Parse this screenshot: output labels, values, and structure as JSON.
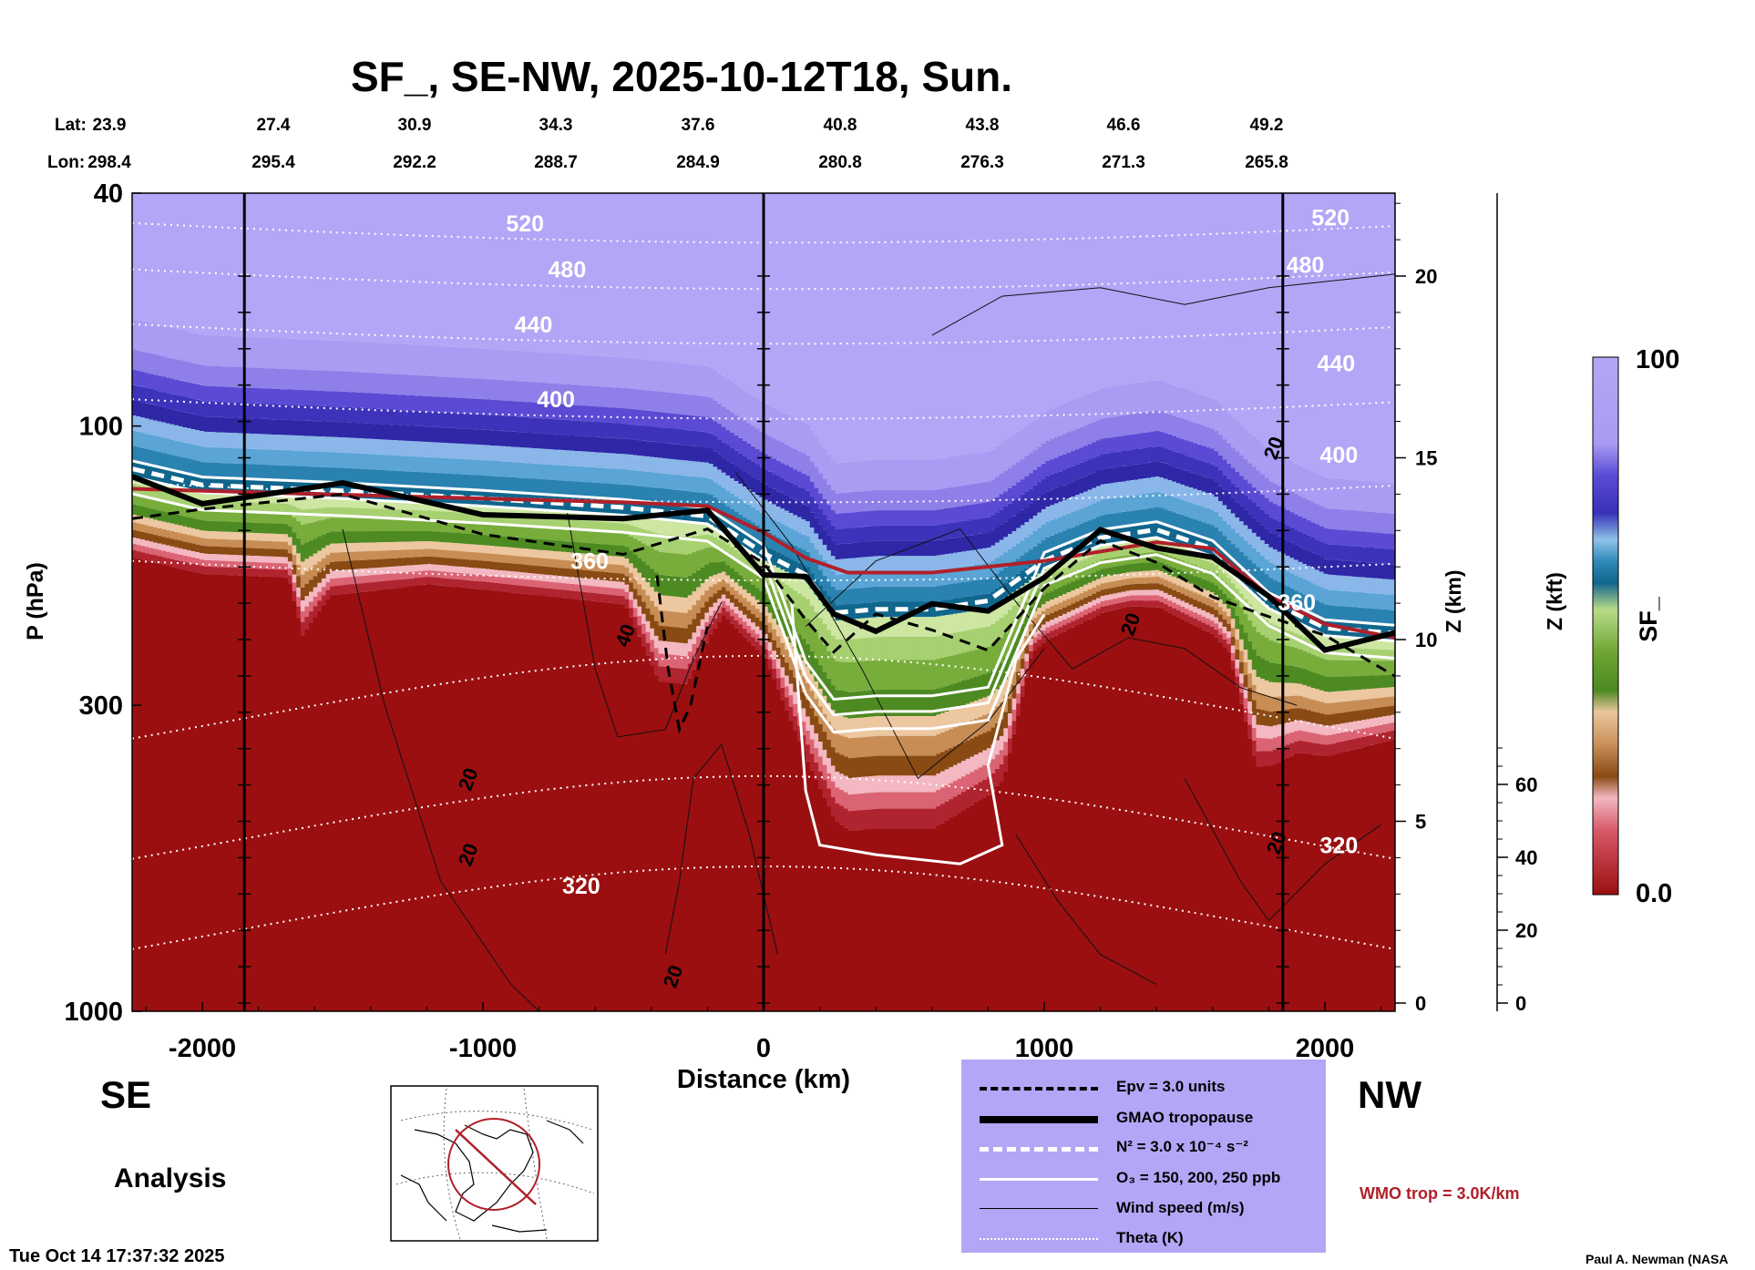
{
  "title": "SF_, SE-NW, 2025-10-12T18, Sun.",
  "lat_label": "Lat:",
  "lon_label": "Lon:",
  "lats": [
    "23.9",
    "27.4",
    "30.9",
    "34.3",
    "37.6",
    "40.8",
    "43.8",
    "46.6",
    "49.2"
  ],
  "lons": [
    "298.4",
    "295.4",
    "292.2",
    "288.7",
    "284.9",
    "280.8",
    "276.3",
    "271.3",
    "265.8"
  ],
  "direction_left": "SE",
  "direction_right": "NW",
  "analysis_label": "Analysis",
  "timestamp": "Tue Oct 14 17:37:32 2025",
  "credit": "Paul A. Newman (NASA",
  "wmo_text": "WMO trop = 3.0K/km",
  "legend": [
    {
      "style": "dashed-black",
      "label": "Epv = 3.0 units"
    },
    {
      "style": "thick-black",
      "label": "GMAO tropopause"
    },
    {
      "style": "dashed-white",
      "label": "N² = 3.0 x 10⁻⁴ s⁻²"
    },
    {
      "style": "solid-white",
      "label": "O₃ = 150, 200, 250 ppb"
    },
    {
      "style": "thin-black",
      "label": "Wind speed (m/s)"
    },
    {
      "style": "dotted-white",
      "label": "Theta (K)"
    }
  ],
  "colors": {
    "wmo": "#b0202a",
    "legend_bg": "#b3a6f7",
    "field_low": "#9b0f10",
    "field_high": "#b3a6f7"
  },
  "chart_data": {
    "type": "heatmap",
    "title": "SF_, SE-NW, 2025-10-12T18, Sun.",
    "xlabel": "Distance (km)",
    "ylabel": "P (hPa)",
    "z_km_label": "Z (km)",
    "z_kft_label": "Z (kft)",
    "colorbar_label": "SF_",
    "colorbar_max_label": "100",
    "colorbar_min_label": "0.0",
    "xlim": [
      -2250,
      2250
    ],
    "x_ticks": [
      -2000,
      -1000,
      0,
      1000,
      2000
    ],
    "y_ticks_hpa": [
      40,
      100,
      300,
      1000
    ],
    "z_km_ticks": [
      0,
      5,
      10,
      15,
      20
    ],
    "z_kft_ticks": [
      0,
      20,
      40,
      60
    ],
    "vertical_lines_km": [
      -1850,
      0,
      1850
    ],
    "tropopause_hpa": [
      [
        -2250,
        122
      ],
      [
        -2000,
        130
      ],
      [
        -1500,
        133
      ],
      [
        -1000,
        137
      ],
      [
        -500,
        142
      ],
      [
        -200,
        147
      ],
      [
        0,
        170
      ],
      [
        150,
        185
      ],
      [
        250,
        215
      ],
      [
        400,
        212
      ],
      [
        600,
        212
      ],
      [
        800,
        205
      ],
      [
        1000,
        175
      ],
      [
        1200,
        160
      ],
      [
        1400,
        155
      ],
      [
        1600,
        167
      ],
      [
        1800,
        205
      ],
      [
        2000,
        228
      ],
      [
        2250,
        233
      ]
    ],
    "wmo_trop_hpa": [
      [
        -2250,
        128
      ],
      [
        -1500,
        131
      ],
      [
        -1000,
        133
      ],
      [
        -500,
        135
      ],
      [
        -200,
        137
      ],
      [
        0,
        152
      ],
      [
        150,
        168
      ],
      [
        300,
        178
      ],
      [
        600,
        178
      ],
      [
        1000,
        170
      ],
      [
        1400,
        158
      ],
      [
        1600,
        162
      ],
      [
        1800,
        195
      ],
      [
        2000,
        218
      ],
      [
        2250,
        230
      ]
    ],
    "theta_labels": [
      {
        "value": "520",
        "x": -850,
        "p": 45
      },
      {
        "value": "480",
        "x": -700,
        "p": 54
      },
      {
        "value": "440",
        "x": -820,
        "p": 67
      },
      {
        "value": "400",
        "x": -740,
        "p": 90
      },
      {
        "value": "360",
        "x": -620,
        "p": 170
      },
      {
        "value": "320",
        "x": -650,
        "p": 610
      },
      {
        "value": "520",
        "x": 2020,
        "p": 44
      },
      {
        "value": "480",
        "x": 1930,
        "p": 53
      },
      {
        "value": "440",
        "x": 2040,
        "p": 78
      },
      {
        "value": "400",
        "x": 2050,
        "p": 112
      },
      {
        "value": "360",
        "x": 1900,
        "p": 200
      },
      {
        "value": "320",
        "x": 2050,
        "p": 520
      }
    ],
    "wind_labels": [
      {
        "value": "40",
        "x": -470,
        "p": 230
      },
      {
        "value": "20",
        "x": -1030,
        "p": 405
      },
      {
        "value": "20",
        "x": -1030,
        "p": 545
      },
      {
        "value": "20",
        "x": -300,
        "p": 880
      },
      {
        "value": "20",
        "x": 1330,
        "p": 220
      },
      {
        "value": "20",
        "x": 1840,
        "p": 110
      },
      {
        "value": "20",
        "x": 1850,
        "p": 520
      }
    ]
  }
}
